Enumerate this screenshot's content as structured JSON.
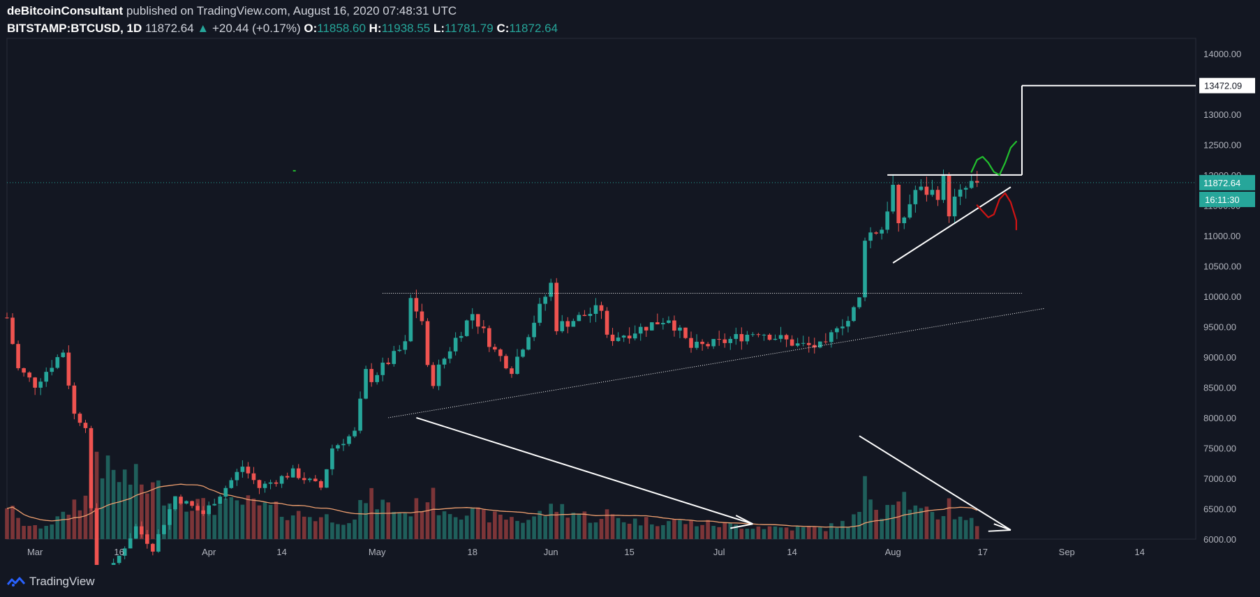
{
  "header": {
    "author": "deBitcoinConsultant",
    "published_text": "published on TradingView.com, August 16, 2020 07:48:31 UTC",
    "symbol": "BITSTAMP:BTCUSD, 1D",
    "last": "11872.64",
    "change": "+20.44 (+0.17%)",
    "o_label": "O:",
    "o_value": "11858.60",
    "h_label": "H:",
    "h_value": "11938.55",
    "l_label": "L:",
    "l_value": "11781.79",
    "c_label": "C:",
    "c_value": "11872.64"
  },
  "footer": {
    "brand": "TradingView"
  },
  "colors": {
    "background": "#131722",
    "up": "#26a69a",
    "down": "#ef5350",
    "volume_up": "#1f5f5b",
    "volume_down": "#7c3538",
    "volume_ma": "#f0a070",
    "drawing": "#ffffff",
    "bull_path": "#22c02e",
    "bear_path": "#d01414"
  },
  "chart_data": {
    "type": "candlestick",
    "symbol": "BITSTAMP:BTCUSD",
    "interval": "1D",
    "ylim": [
      6000,
      14250
    ],
    "price_ticks": [
      "14000.00",
      "13500.00",
      "13000.00",
      "12500.00",
      "12000.00",
      "11500.00",
      "11000.00",
      "10500.00",
      "10000.00",
      "9500.00",
      "9000.00",
      "8500.00",
      "8000.00",
      "7500.00",
      "7000.00",
      "6500.00",
      "6000.00"
    ],
    "x_ticks": [
      {
        "label": "Mar",
        "date": "2020-03-01"
      },
      {
        "label": "16",
        "date": "2020-03-16"
      },
      {
        "label": "Apr",
        "date": "2020-04-01"
      },
      {
        "label": "14",
        "date": "2020-04-14"
      },
      {
        "label": "May",
        "date": "2020-05-01"
      },
      {
        "label": "18",
        "date": "2020-05-18"
      },
      {
        "label": "Jun",
        "date": "2020-06-01"
      },
      {
        "label": "15",
        "date": "2020-06-15"
      },
      {
        "label": "Jul",
        "date": "2020-07-01"
      },
      {
        "label": "14",
        "date": "2020-07-14"
      },
      {
        "label": "Aug",
        "date": "2020-08-01"
      },
      {
        "label": "17",
        "date": "2020-08-17"
      },
      {
        "label": "Sep",
        "date": "2020-09-01"
      },
      {
        "label": "14",
        "date": "2020-09-14"
      }
    ],
    "x_range": [
      "2020-02-25",
      "2020-09-24"
    ],
    "last_price_label": "11872.64",
    "countdown_label": "16:11:30",
    "target_label": "13472.09",
    "target_price": 13472.09,
    "price_anchors": [
      [
        "2020-02-25",
        9650,
        1
      ],
      [
        "2020-02-27",
        8800,
        0.5
      ],
      [
        "2020-03-01",
        8550,
        0.3
      ],
      [
        "2020-03-06",
        9100,
        0.6
      ],
      [
        "2020-03-08",
        8050,
        1.0
      ],
      [
        "2020-03-10",
        7900,
        1.1
      ],
      [
        "2020-03-12",
        5000,
        2.5
      ],
      [
        "2020-03-14",
        5400,
        1.8
      ],
      [
        "2020-03-19",
        6200,
        1.6
      ],
      [
        "2020-03-22",
        5850,
        1.4
      ],
      [
        "2020-03-26",
        6700,
        1.2
      ],
      [
        "2020-03-31",
        6420,
        0.9
      ],
      [
        "2020-04-04",
        6850,
        0.9
      ],
      [
        "2020-04-07",
        7200,
        1.0
      ],
      [
        "2020-04-10",
        6850,
        0.9
      ],
      [
        "2020-04-16",
        7100,
        0.7
      ],
      [
        "2020-04-21",
        6850,
        0.6
      ],
      [
        "2020-04-23",
        7500,
        0.6
      ],
      [
        "2020-04-27",
        7750,
        0.5
      ],
      [
        "2020-04-29",
        8750,
        1.2
      ],
      [
        "2020-04-30",
        8650,
        1.1
      ],
      [
        "2020-05-06",
        9200,
        0.7
      ],
      [
        "2020-05-07",
        9950,
        0.8
      ],
      [
        "2020-05-09",
        9600,
        1.0
      ],
      [
        "2020-05-10",
        8800,
        1.2
      ],
      [
        "2020-05-11",
        8600,
        1.1
      ],
      [
        "2020-05-12",
        8820,
        0.9
      ],
      [
        "2020-05-15",
        9300,
        0.8
      ],
      [
        "2020-05-18",
        9720,
        0.7
      ],
      [
        "2020-05-22",
        9100,
        0.6
      ],
      [
        "2020-05-25",
        8800,
        0.6
      ],
      [
        "2020-05-27",
        9200,
        0.5
      ],
      [
        "2020-06-01",
        10200,
        0.8
      ],
      [
        "2020-06-02",
        9500,
        0.9
      ],
      [
        "2020-06-10",
        9800,
        0.5
      ],
      [
        "2020-06-11",
        9300,
        0.7
      ],
      [
        "2020-06-15",
        9400,
        0.5
      ],
      [
        "2020-06-22",
        9650,
        0.5
      ],
      [
        "2020-06-26",
        9150,
        0.45
      ],
      [
        "2020-07-01",
        9230,
        0.4
      ],
      [
        "2020-07-08",
        9430,
        0.35
      ],
      [
        "2020-07-15",
        9200,
        0.3
      ],
      [
        "2020-07-20",
        9160,
        0.3
      ],
      [
        "2020-07-22",
        9550,
        0.4
      ],
      [
        "2020-07-24",
        9600,
        0.45
      ],
      [
        "2020-07-26",
        9950,
        0.7
      ],
      [
        "2020-07-27",
        11000,
        1.4
      ],
      [
        "2020-07-30",
        11120,
        0.8
      ],
      [
        "2020-08-01",
        11800,
        1.2
      ],
      [
        "2020-08-02",
        11100,
        1.4
      ],
      [
        "2020-08-05",
        11750,
        0.8
      ],
      [
        "2020-08-09",
        11700,
        0.6
      ],
      [
        "2020-08-10",
        11900,
        0.8
      ],
      [
        "2020-08-11",
        11400,
        1.0
      ],
      [
        "2020-08-12",
        11580,
        0.7
      ],
      [
        "2020-08-14",
        11770,
        0.6
      ],
      [
        "2020-08-15",
        11852.2,
        0.5
      ],
      [
        "2020-08-16",
        11872.64,
        0.3
      ]
    ]
  }
}
